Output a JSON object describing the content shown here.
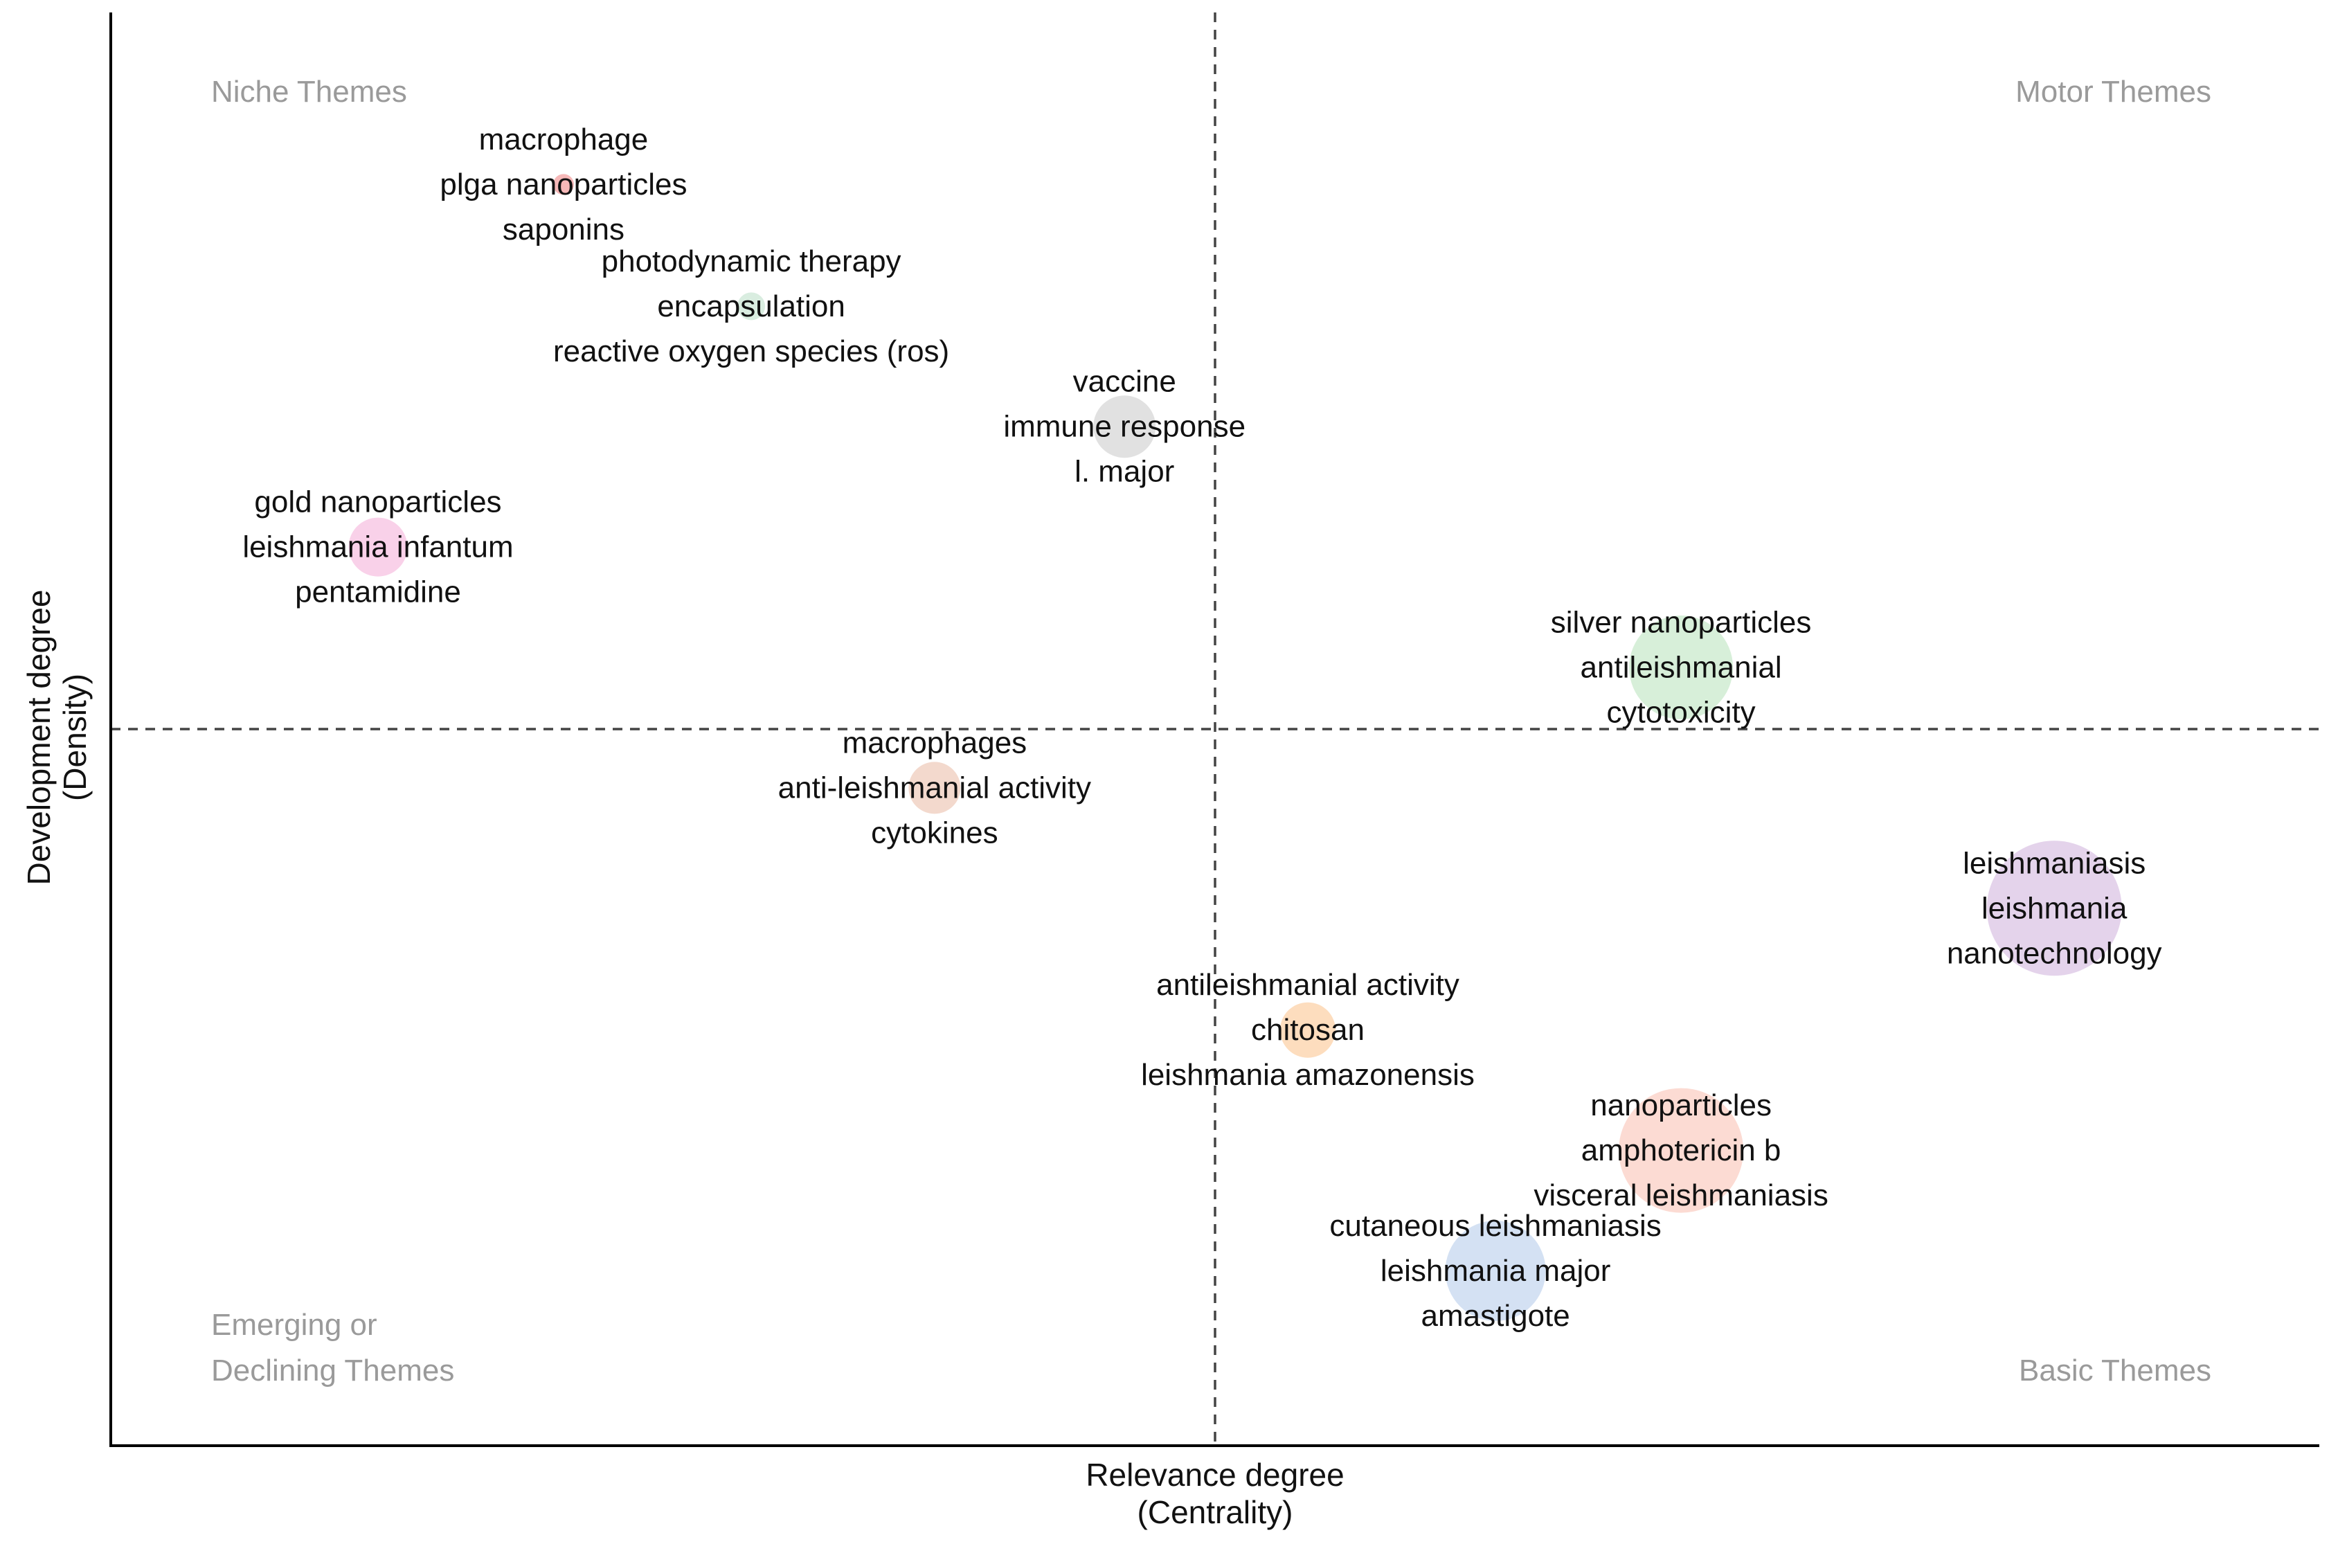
{
  "chart_data": {
    "type": "scatter",
    "subtype": "thematic-map-bubble",
    "xlabel": [
      "Relevance degree",
      "(Centrality)"
    ],
    "ylabel": [
      "Development degree",
      "(Density)"
    ],
    "xlim": [
      0,
      1
    ],
    "ylim": [
      0,
      1
    ],
    "x_divider": 0.5,
    "y_divider": 0.5,
    "grid": false,
    "quadrants": {
      "top_left": [
        "Niche Themes"
      ],
      "top_right": [
        "Motor Themes"
      ],
      "bottom_left": [
        "Emerging or",
        "Declining Themes"
      ],
      "bottom_right": [
        "Basic Themes"
      ]
    },
    "clusters": [
      {
        "terms": [
          "macrophage",
          "plga nanoparticles",
          "saponins"
        ],
        "x": 0.205,
        "y": 0.88,
        "size": 0.3,
        "color": "#f4a6a6"
      },
      {
        "terms": [
          "photodynamic therapy",
          "encapsulation",
          "reactive oxygen species (ros)"
        ],
        "x": 0.29,
        "y": 0.795,
        "size": 0.4,
        "color": "#cfe8d8"
      },
      {
        "terms": [
          "vaccine",
          "immune response",
          "l. major"
        ],
        "x": 0.459,
        "y": 0.711,
        "size": 0.9,
        "color": "#d9d9d9"
      },
      {
        "terms": [
          "gold nanoparticles",
          "leishmania infantum",
          "pentamidine"
        ],
        "x": 0.121,
        "y": 0.627,
        "size": 0.85,
        "color": "#f8c6e4"
      },
      {
        "terms": [
          "silver nanoparticles",
          "antileishmanial",
          "cytotoxicity"
        ],
        "x": 0.711,
        "y": 0.543,
        "size": 1.5,
        "color": "#cdebd0"
      },
      {
        "terms": [
          "macrophages",
          "anti-leishmanial activity",
          "cytokines"
        ],
        "x": 0.373,
        "y": 0.459,
        "size": 0.75,
        "color": "#f0cfc0"
      },
      {
        "terms": [
          "leishmaniasis",
          "leishmania",
          "nanotechnology"
        ],
        "x": 0.88,
        "y": 0.375,
        "size": 1.95,
        "color": "#ddc8e6"
      },
      {
        "terms": [
          "antileishmanial activity",
          "chitosan",
          "leishmania amazonensis"
        ],
        "x": 0.542,
        "y": 0.29,
        "size": 0.8,
        "color": "#fcd5ae"
      },
      {
        "terms": [
          "nanoparticles",
          "amphotericin b",
          "visceral leishmaniasis"
        ],
        "x": 0.711,
        "y": 0.206,
        "size": 1.8,
        "color": "#fbd2c8"
      },
      {
        "terms": [
          "cutaneous leishmaniasis",
          "leishmania major",
          "amastigote"
        ],
        "x": 0.627,
        "y": 0.122,
        "size": 1.45,
        "color": "#c9daf0"
      }
    ]
  }
}
